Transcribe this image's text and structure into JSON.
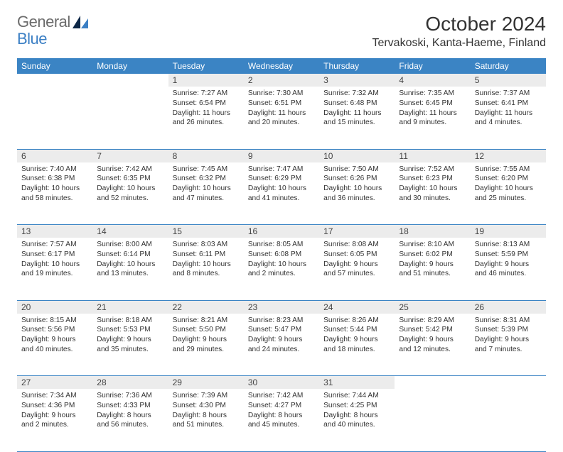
{
  "logo": {
    "text1": "General",
    "text2": "Blue"
  },
  "title": "October 2024",
  "location": "Tervakoski, Kanta-Haeme, Finland",
  "colors": {
    "header_bg": "#3b84c4",
    "header_text": "#ffffff",
    "daynum_bg": "#ececec",
    "cell_border": "#3b84c4",
    "page_bg": "#ffffff",
    "text": "#333333",
    "logo_gray": "#6b6b6b",
    "logo_blue": "#3b7fc4"
  },
  "typography": {
    "title_fontsize": 28,
    "location_fontsize": 16,
    "dayheader_fontsize": 12,
    "daynum_fontsize": 12,
    "body_fontsize": 10.2
  },
  "day_headers": [
    "Sunday",
    "Monday",
    "Tuesday",
    "Wednesday",
    "Thursday",
    "Friday",
    "Saturday"
  ],
  "weeks": [
    {
      "nums": [
        "",
        "",
        "1",
        "2",
        "3",
        "4",
        "5"
      ],
      "cells": [
        {
          "sunrise": "",
          "sunset": "",
          "daylight": ""
        },
        {
          "sunrise": "",
          "sunset": "",
          "daylight": ""
        },
        {
          "sunrise": "Sunrise: 7:27 AM",
          "sunset": "Sunset: 6:54 PM",
          "daylight": "Daylight: 11 hours and 26 minutes."
        },
        {
          "sunrise": "Sunrise: 7:30 AM",
          "sunset": "Sunset: 6:51 PM",
          "daylight": "Daylight: 11 hours and 20 minutes."
        },
        {
          "sunrise": "Sunrise: 7:32 AM",
          "sunset": "Sunset: 6:48 PM",
          "daylight": "Daylight: 11 hours and 15 minutes."
        },
        {
          "sunrise": "Sunrise: 7:35 AM",
          "sunset": "Sunset: 6:45 PM",
          "daylight": "Daylight: 11 hours and 9 minutes."
        },
        {
          "sunrise": "Sunrise: 7:37 AM",
          "sunset": "Sunset: 6:41 PM",
          "daylight": "Daylight: 11 hours and 4 minutes."
        }
      ]
    },
    {
      "nums": [
        "6",
        "7",
        "8",
        "9",
        "10",
        "11",
        "12"
      ],
      "cells": [
        {
          "sunrise": "Sunrise: 7:40 AM",
          "sunset": "Sunset: 6:38 PM",
          "daylight": "Daylight: 10 hours and 58 minutes."
        },
        {
          "sunrise": "Sunrise: 7:42 AM",
          "sunset": "Sunset: 6:35 PM",
          "daylight": "Daylight: 10 hours and 52 minutes."
        },
        {
          "sunrise": "Sunrise: 7:45 AM",
          "sunset": "Sunset: 6:32 PM",
          "daylight": "Daylight: 10 hours and 47 minutes."
        },
        {
          "sunrise": "Sunrise: 7:47 AM",
          "sunset": "Sunset: 6:29 PM",
          "daylight": "Daylight: 10 hours and 41 minutes."
        },
        {
          "sunrise": "Sunrise: 7:50 AM",
          "sunset": "Sunset: 6:26 PM",
          "daylight": "Daylight: 10 hours and 36 minutes."
        },
        {
          "sunrise": "Sunrise: 7:52 AM",
          "sunset": "Sunset: 6:23 PM",
          "daylight": "Daylight: 10 hours and 30 minutes."
        },
        {
          "sunrise": "Sunrise: 7:55 AM",
          "sunset": "Sunset: 6:20 PM",
          "daylight": "Daylight: 10 hours and 25 minutes."
        }
      ]
    },
    {
      "nums": [
        "13",
        "14",
        "15",
        "16",
        "17",
        "18",
        "19"
      ],
      "cells": [
        {
          "sunrise": "Sunrise: 7:57 AM",
          "sunset": "Sunset: 6:17 PM",
          "daylight": "Daylight: 10 hours and 19 minutes."
        },
        {
          "sunrise": "Sunrise: 8:00 AM",
          "sunset": "Sunset: 6:14 PM",
          "daylight": "Daylight: 10 hours and 13 minutes."
        },
        {
          "sunrise": "Sunrise: 8:03 AM",
          "sunset": "Sunset: 6:11 PM",
          "daylight": "Daylight: 10 hours and 8 minutes."
        },
        {
          "sunrise": "Sunrise: 8:05 AM",
          "sunset": "Sunset: 6:08 PM",
          "daylight": "Daylight: 10 hours and 2 minutes."
        },
        {
          "sunrise": "Sunrise: 8:08 AM",
          "sunset": "Sunset: 6:05 PM",
          "daylight": "Daylight: 9 hours and 57 minutes."
        },
        {
          "sunrise": "Sunrise: 8:10 AM",
          "sunset": "Sunset: 6:02 PM",
          "daylight": "Daylight: 9 hours and 51 minutes."
        },
        {
          "sunrise": "Sunrise: 8:13 AM",
          "sunset": "Sunset: 5:59 PM",
          "daylight": "Daylight: 9 hours and 46 minutes."
        }
      ]
    },
    {
      "nums": [
        "20",
        "21",
        "22",
        "23",
        "24",
        "25",
        "26"
      ],
      "cells": [
        {
          "sunrise": "Sunrise: 8:15 AM",
          "sunset": "Sunset: 5:56 PM",
          "daylight": "Daylight: 9 hours and 40 minutes."
        },
        {
          "sunrise": "Sunrise: 8:18 AM",
          "sunset": "Sunset: 5:53 PM",
          "daylight": "Daylight: 9 hours and 35 minutes."
        },
        {
          "sunrise": "Sunrise: 8:21 AM",
          "sunset": "Sunset: 5:50 PM",
          "daylight": "Daylight: 9 hours and 29 minutes."
        },
        {
          "sunrise": "Sunrise: 8:23 AM",
          "sunset": "Sunset: 5:47 PM",
          "daylight": "Daylight: 9 hours and 24 minutes."
        },
        {
          "sunrise": "Sunrise: 8:26 AM",
          "sunset": "Sunset: 5:44 PM",
          "daylight": "Daylight: 9 hours and 18 minutes."
        },
        {
          "sunrise": "Sunrise: 8:29 AM",
          "sunset": "Sunset: 5:42 PM",
          "daylight": "Daylight: 9 hours and 12 minutes."
        },
        {
          "sunrise": "Sunrise: 8:31 AM",
          "sunset": "Sunset: 5:39 PM",
          "daylight": "Daylight: 9 hours and 7 minutes."
        }
      ]
    },
    {
      "nums": [
        "27",
        "28",
        "29",
        "30",
        "31",
        "",
        ""
      ],
      "cells": [
        {
          "sunrise": "Sunrise: 7:34 AM",
          "sunset": "Sunset: 4:36 PM",
          "daylight": "Daylight: 9 hours and 2 minutes."
        },
        {
          "sunrise": "Sunrise: 7:36 AM",
          "sunset": "Sunset: 4:33 PM",
          "daylight": "Daylight: 8 hours and 56 minutes."
        },
        {
          "sunrise": "Sunrise: 7:39 AM",
          "sunset": "Sunset: 4:30 PM",
          "daylight": "Daylight: 8 hours and 51 minutes."
        },
        {
          "sunrise": "Sunrise: 7:42 AM",
          "sunset": "Sunset: 4:27 PM",
          "daylight": "Daylight: 8 hours and 45 minutes."
        },
        {
          "sunrise": "Sunrise: 7:44 AM",
          "sunset": "Sunset: 4:25 PM",
          "daylight": "Daylight: 8 hours and 40 minutes."
        },
        {
          "sunrise": "",
          "sunset": "",
          "daylight": ""
        },
        {
          "sunrise": "",
          "sunset": "",
          "daylight": ""
        }
      ]
    }
  ]
}
